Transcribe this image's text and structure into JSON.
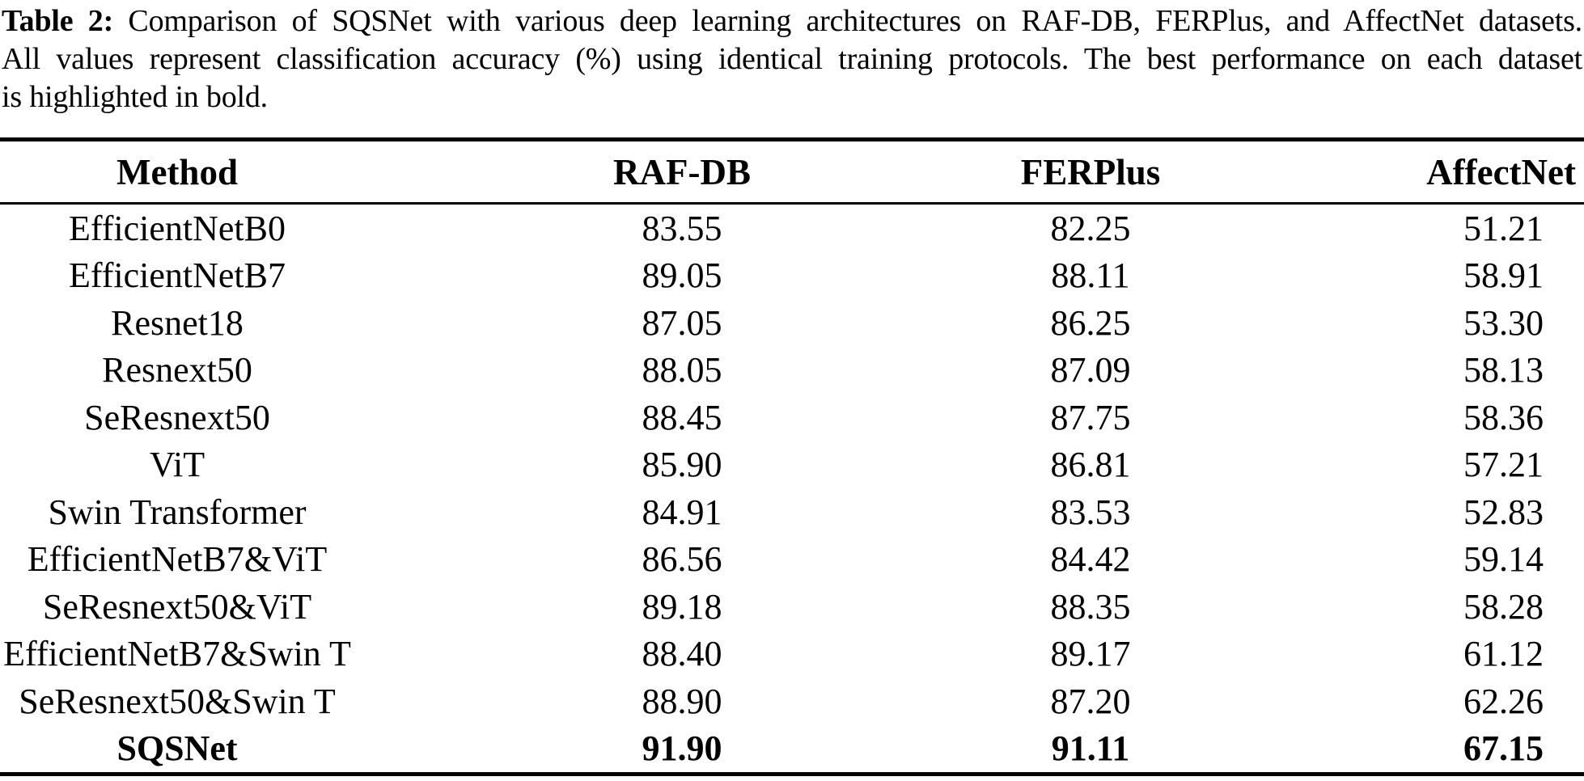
{
  "caption": {
    "label": "Table 2:",
    "lines": [
      "Comparison of SQSNet with various deep learning architectures on RAF-DB, FERPlus, and AffectNet datasets.",
      "All values represent classification accuracy (%) using identical training protocols. The best performance on each dataset",
      "is highlighted in bold."
    ]
  },
  "table": {
    "columns": [
      "Method",
      "RAF-DB",
      "FERPlus",
      "AffectNet"
    ],
    "rows": [
      {
        "method": "EfficientNetB0",
        "values": [
          "83.55",
          "82.25",
          "51.21"
        ],
        "bold": false
      },
      {
        "method": "EfficientNetB7",
        "values": [
          "89.05",
          "88.11",
          "58.91"
        ],
        "bold": false
      },
      {
        "method": "Resnet18",
        "values": [
          "87.05",
          "86.25",
          "53.30"
        ],
        "bold": false
      },
      {
        "method": "Resnext50",
        "values": [
          "88.05",
          "87.09",
          "58.13"
        ],
        "bold": false
      },
      {
        "method": "SeResnext50",
        "values": [
          "88.45",
          "87.75",
          "58.36"
        ],
        "bold": false
      },
      {
        "method": "ViT",
        "values": [
          "85.90",
          "86.81",
          "57.21"
        ],
        "bold": false
      },
      {
        "method": "Swin Transformer",
        "values": [
          "84.91",
          "83.53",
          "52.83"
        ],
        "bold": false
      },
      {
        "method": "EfficientNetB7&ViT",
        "values": [
          "86.56",
          "84.42",
          "59.14"
        ],
        "bold": false
      },
      {
        "method": "SeResnext50&ViT",
        "values": [
          "89.18",
          "88.35",
          "58.28"
        ],
        "bold": false
      },
      {
        "method": "EfficientNetB7&Swin T",
        "values": [
          "88.40",
          "89.17",
          "61.12"
        ],
        "bold": false
      },
      {
        "method": "SeResnext50&Swin T",
        "values": [
          "88.90",
          "87.20",
          "62.26"
        ],
        "bold": false
      },
      {
        "method": "SQSNet",
        "values": [
          "91.90",
          "91.11",
          "67.15"
        ],
        "bold": true
      }
    ]
  },
  "colors": {
    "text": "#000000",
    "background": "#ffffff",
    "rule": "#000000"
  }
}
